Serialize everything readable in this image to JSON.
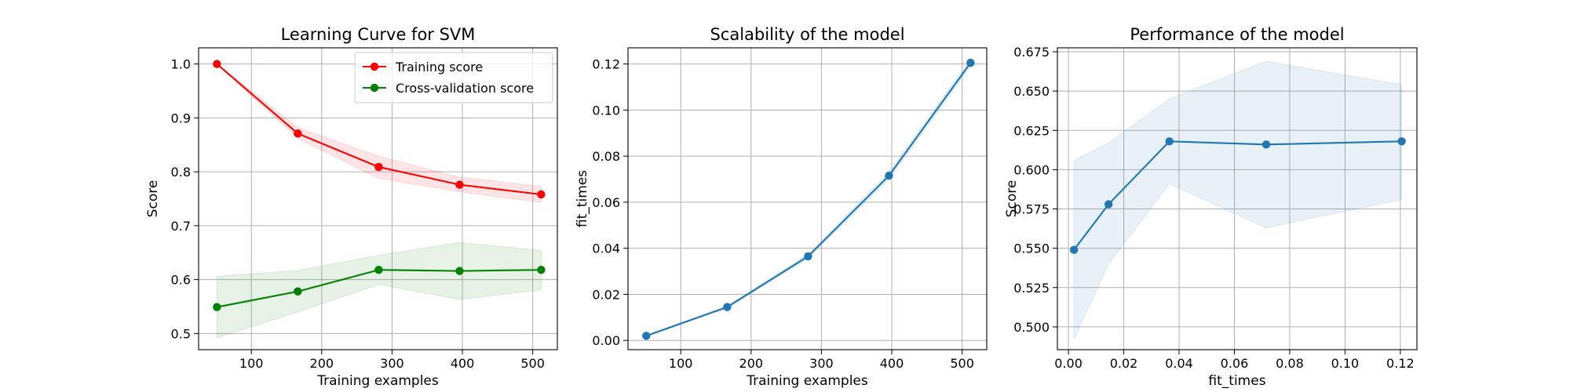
{
  "chart_data": [
    {
      "type": "line",
      "title": "Learning Curve for SVM",
      "xlabel": "Training examples",
      "ylabel": "Score",
      "xlim": [
        25,
        535
      ],
      "ylim": [
        0.47,
        1.03
      ],
      "xticks": [
        100,
        200,
        300,
        400,
        500
      ],
      "yticks": [
        0.5,
        0.6,
        0.7,
        0.8,
        0.9,
        1.0
      ],
      "xtick_labels": [
        "100",
        "200",
        "300",
        "400",
        "500"
      ],
      "ytick_labels": [
        "0.5",
        "0.6",
        "0.7",
        "0.8",
        "0.9",
        "1.0"
      ],
      "grid": true,
      "legend": "top-right",
      "x": [
        51,
        166,
        281,
        396,
        512
      ],
      "series": [
        {
          "name": "Training score",
          "color": "#ff0000",
          "values": [
            1.0,
            0.871,
            0.809,
            0.776,
            0.758
          ],
          "band_low": [
            1.0,
            0.862,
            0.788,
            0.763,
            0.743
          ],
          "band_high": [
            1.0,
            0.882,
            0.829,
            0.79,
            0.773
          ]
        },
        {
          "name": "Cross-validation score",
          "color": "#008000",
          "values": [
            0.549,
            0.578,
            0.618,
            0.616,
            0.618
          ],
          "band_low": [
            0.492,
            0.54,
            0.591,
            0.563,
            0.581
          ],
          "band_high": [
            0.606,
            0.617,
            0.645,
            0.669,
            0.654
          ]
        }
      ]
    },
    {
      "type": "line",
      "title": "Scalability of the model",
      "xlabel": "Training examples",
      "ylabel": "fit_times",
      "xlim": [
        25,
        535
      ],
      "ylim": [
        -0.004,
        0.127
      ],
      "xticks": [
        100,
        200,
        300,
        400,
        500
      ],
      "yticks": [
        0.0,
        0.02,
        0.04,
        0.06,
        0.08,
        0.1,
        0.12
      ],
      "xtick_labels": [
        "100",
        "200",
        "300",
        "400",
        "500"
      ],
      "ytick_labels": [
        "0.00",
        "0.02",
        "0.04",
        "0.06",
        "0.08",
        "0.10",
        "0.12"
      ],
      "grid": true,
      "x": [
        51,
        166,
        281,
        396,
        512
      ],
      "series": [
        {
          "name": "fit_times",
          "color": "#1f77b4",
          "values": [
            0.002,
            0.0145,
            0.0365,
            0.0715,
            0.1205
          ],
          "band_low": [
            0.0018,
            0.014,
            0.0357,
            0.07,
            0.119
          ],
          "band_high": [
            0.0022,
            0.015,
            0.0373,
            0.073,
            0.122
          ]
        }
      ]
    },
    {
      "type": "line",
      "title": "Performance of the model",
      "xlabel": "fit_times",
      "ylabel": "Score",
      "xlim": [
        -0.004,
        0.126
      ],
      "ylim": [
        0.4855,
        0.6775
      ],
      "xticks": [
        0.0,
        0.02,
        0.04,
        0.06,
        0.08,
        0.1,
        0.12
      ],
      "yticks": [
        0.5,
        0.525,
        0.55,
        0.575,
        0.6,
        0.625,
        0.65,
        0.675
      ],
      "xtick_labels": [
        "0.00",
        "0.02",
        "0.04",
        "0.06",
        "0.08",
        "0.10",
        "0.12"
      ],
      "ytick_labels": [
        "0.500",
        "0.525",
        "0.550",
        "0.575",
        "0.600",
        "0.625",
        "0.650",
        "0.675"
      ],
      "grid": true,
      "x": [
        0.002,
        0.0145,
        0.0365,
        0.0715,
        0.1205
      ],
      "series": [
        {
          "name": "Score",
          "color": "#1f77b4",
          "values": [
            0.549,
            0.578,
            0.618,
            0.616,
            0.618
          ],
          "band_low": [
            0.492,
            0.54,
            0.591,
            0.563,
            0.581
          ],
          "band_high": [
            0.606,
            0.617,
            0.645,
            0.669,
            0.654
          ]
        }
      ]
    }
  ]
}
